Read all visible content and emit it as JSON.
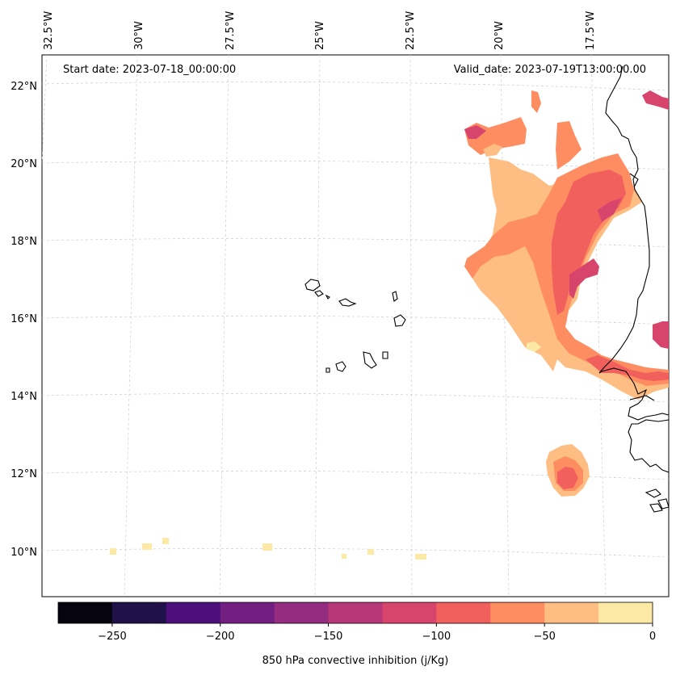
{
  "annotations": {
    "start_date": "Start date: 2023-07-18_00:00:00",
    "valid_date": "Valid_date: 2023-07-19T13:00:00.00"
  },
  "longitude_ticks": [
    "32.5°W",
    "30°W",
    "27.5°W",
    "25°W",
    "22.5°W",
    "20°W",
    "17.5°W"
  ],
  "latitude_ticks": [
    "22°N",
    "20°N",
    "18°N",
    "16°N",
    "14°N",
    "12°N",
    "10°N"
  ],
  "colorbar": {
    "label": "850 hPa convective inhibition (j/Kg)",
    "tick_labels": [
      "−250",
      "−200",
      "−150",
      "−100",
      "−50",
      "0"
    ],
    "colors": [
      "#05040f",
      "#20114b",
      "#4d0f7c",
      "#721f81",
      "#942c80",
      "#b73779",
      "#d8456c",
      "#f1605d",
      "#fe8d62",
      "#febd82",
      "#fde9a6"
    ]
  },
  "colors": {
    "coastline": "#000000",
    "gridline": "#cccccc"
  }
}
